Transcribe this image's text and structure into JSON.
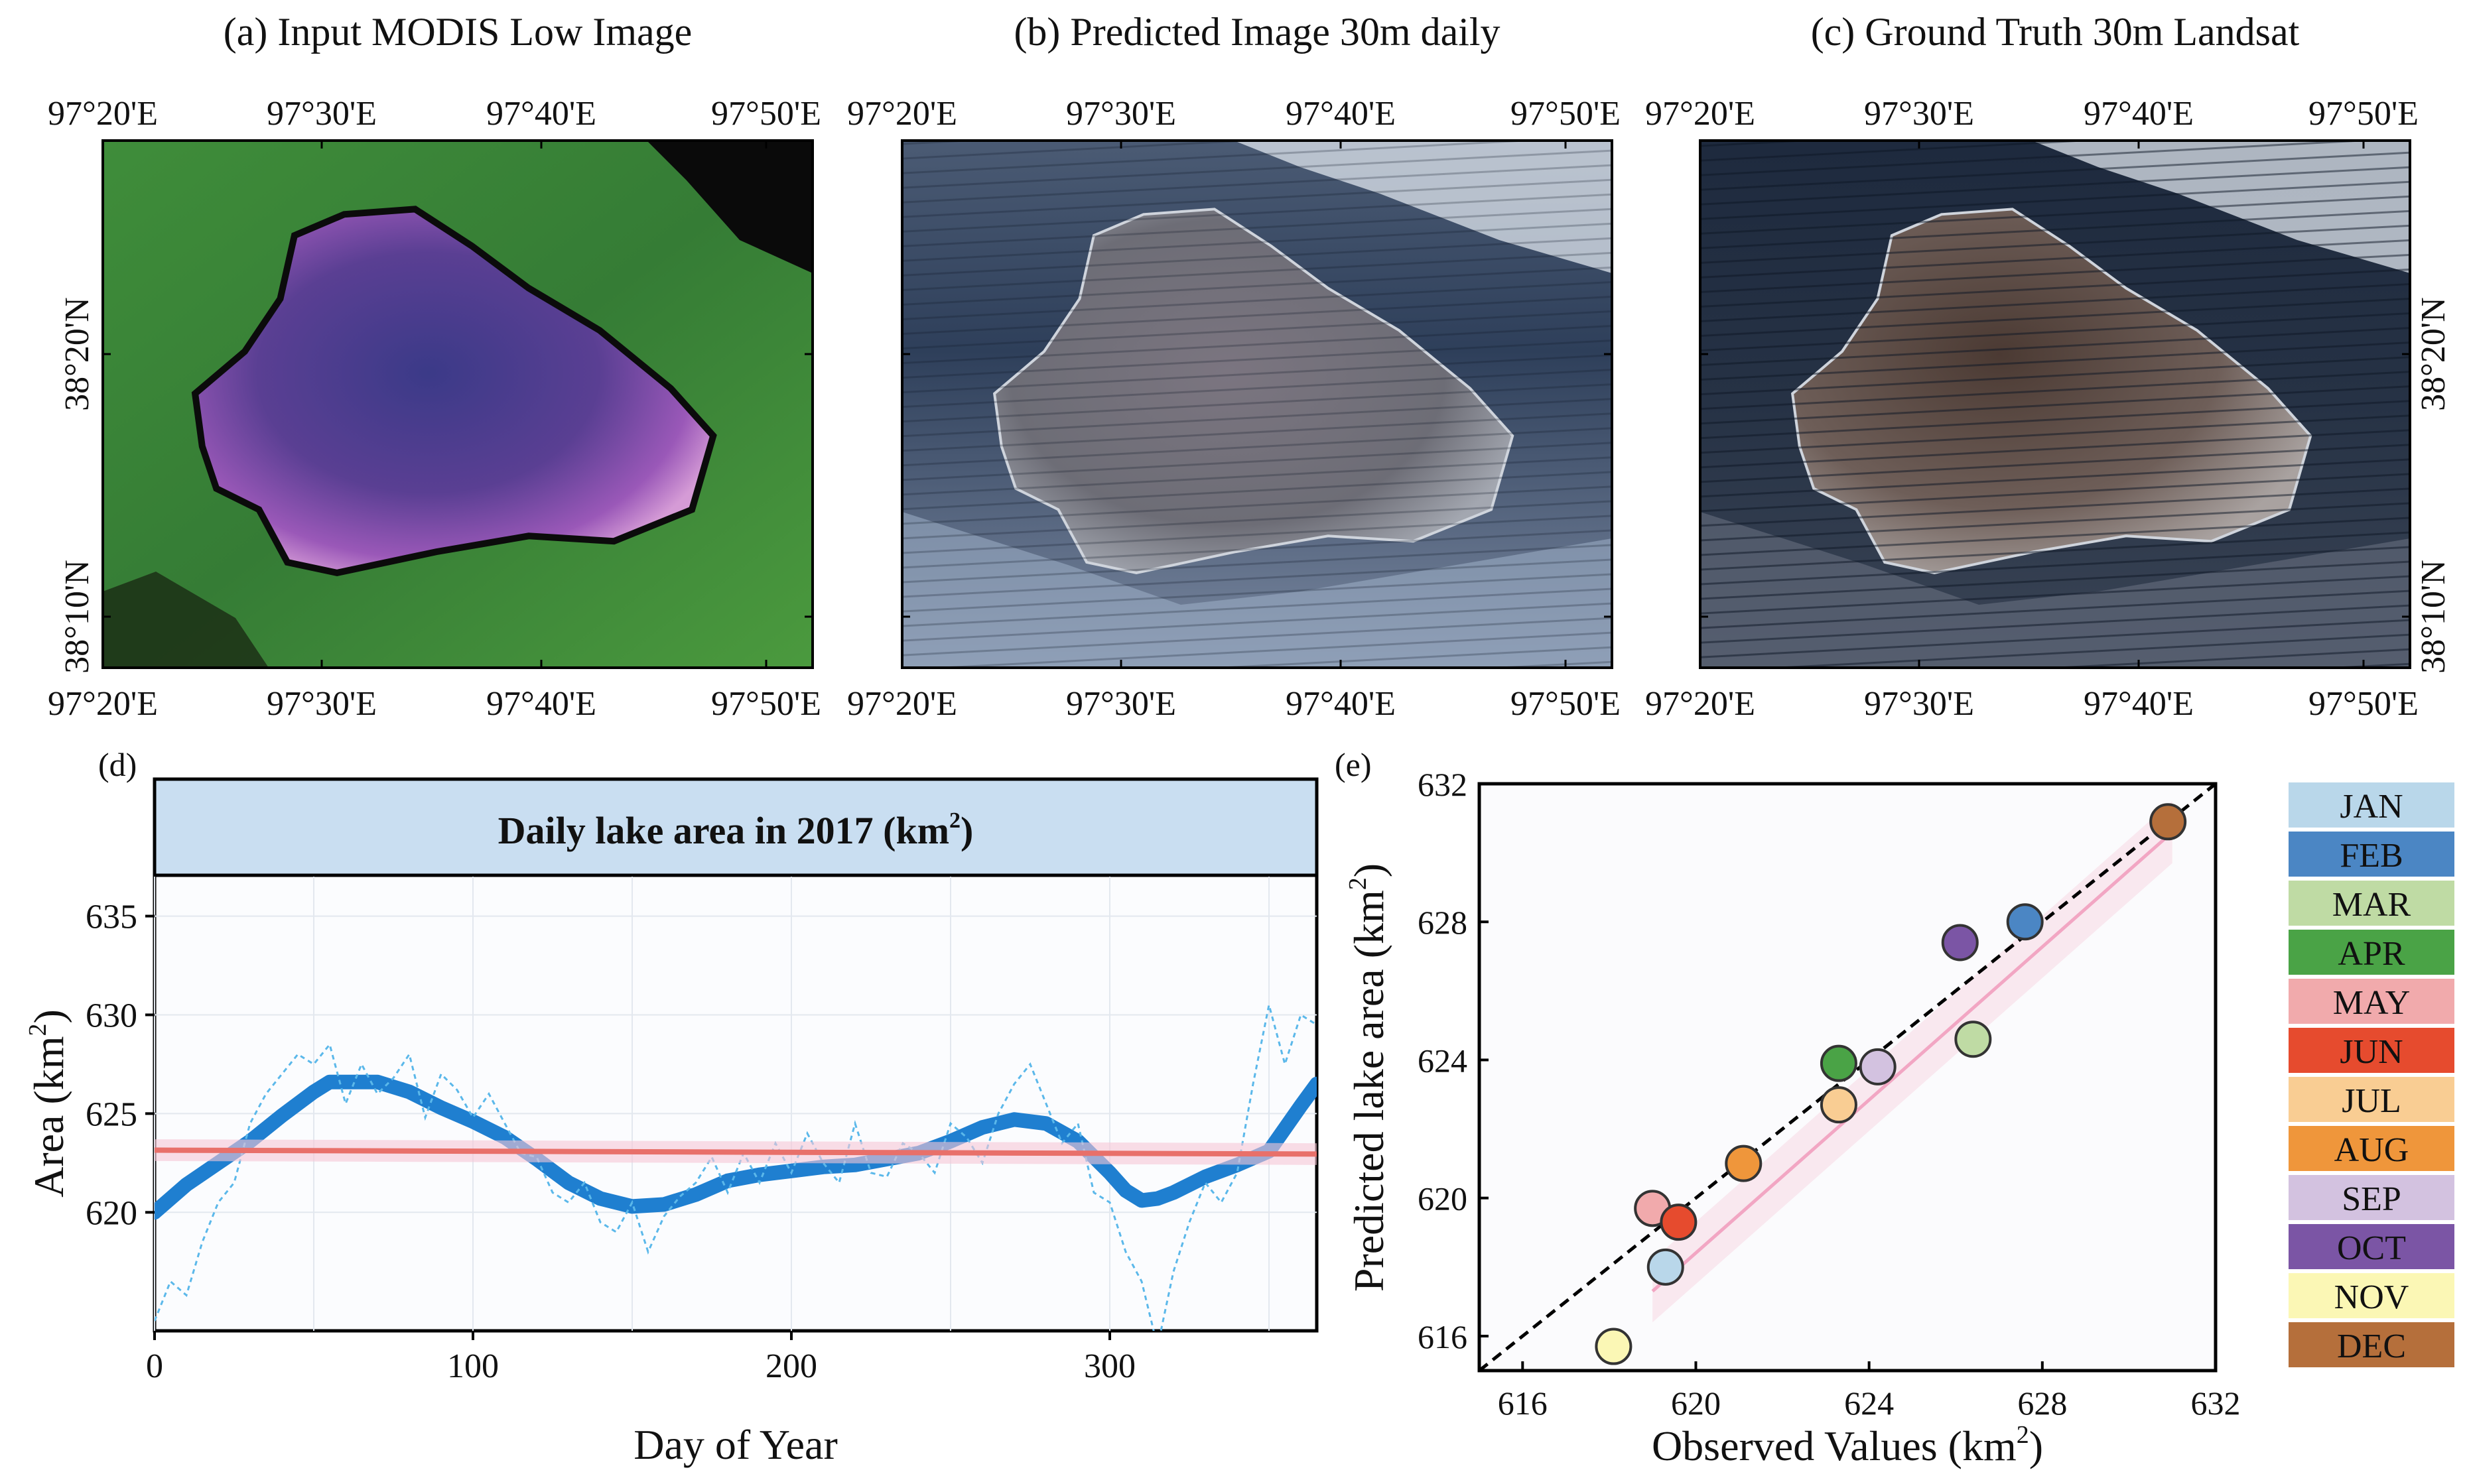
{
  "panels_top": [
    {
      "id": "a",
      "title": "(a) Input MODIS Low Image",
      "x_ticks": [
        "97°20'E",
        "97°30'E",
        "97°40'E",
        "97°50'E"
      ],
      "y_ticks": [
        "38°20'N",
        "38°10'N"
      ],
      "style": "modis"
    },
    {
      "id": "b",
      "title": "(b)  Predicted Image 30m daily",
      "x_ticks": [
        "97°20'E",
        "97°30'E",
        "97°40'E",
        "97°50'E"
      ],
      "y_ticks": [],
      "style": "predicted"
    },
    {
      "id": "c",
      "title": "(c) Ground Truth 30m Landsat",
      "x_ticks": [
        "97°20'E",
        "97°30'E",
        "97°40'E",
        "97°50'E"
      ],
      "y_ticks": [
        "38°20'N",
        "38°10'N"
      ],
      "style": "landsat"
    }
  ],
  "colors": {
    "series_blue": "#1f7fd0",
    "daily_light_blue": "#5bb8ea",
    "trend_red": "#e8706a",
    "trend_band": "#f6c6d6",
    "header_fill": "#c9def1",
    "modis_green": "#3e8a3a",
    "modis_purple": "#5a3f93"
  },
  "chart_data": [
    {
      "panel": "(d)",
      "type": "line",
      "title": "Daily lake area in 2017 (km",
      "title_sup": "2",
      "title_close": ")",
      "xlabel": "Day of Year",
      "ylabel": "Area (km",
      "ylabel_sup": "2",
      "ylabel_close": ")",
      "xlim": [
        0,
        365
      ],
      "ylim": [
        614,
        637
      ],
      "xticks": [
        0,
        100,
        200,
        300
      ],
      "yticks": [
        620,
        625,
        630,
        635
      ],
      "series": [
        {
          "name": "smoothed daily area",
          "kind": "thick-line",
          "x": [
            0,
            10,
            20,
            30,
            40,
            50,
            55,
            70,
            80,
            90,
            100,
            110,
            120,
            130,
            140,
            150,
            160,
            170,
            180,
            190,
            200,
            210,
            220,
            230,
            240,
            250,
            260,
            270,
            280,
            290,
            300,
            305,
            310,
            315,
            320,
            330,
            340,
            350,
            360,
            365
          ],
          "y": [
            620.0,
            621.4,
            622.5,
            623.6,
            624.9,
            626.1,
            626.6,
            626.6,
            626.1,
            625.3,
            624.6,
            623.8,
            622.7,
            621.5,
            620.7,
            620.3,
            620.4,
            620.9,
            621.6,
            621.9,
            622.1,
            622.3,
            622.4,
            622.7,
            623.0,
            623.6,
            624.3,
            624.7,
            624.5,
            623.6,
            622.0,
            621.1,
            620.6,
            620.7,
            621.0,
            621.8,
            622.4,
            623.1,
            625.4,
            626.5
          ]
        },
        {
          "name": "daily values",
          "kind": "dashed-light",
          "x": [
            0,
            5,
            10,
            15,
            20,
            25,
            30,
            35,
            40,
            45,
            50,
            55,
            60,
            65,
            70,
            75,
            80,
            85,
            90,
            95,
            100,
            105,
            110,
            115,
            120,
            125,
            130,
            135,
            140,
            145,
            150,
            155,
            160,
            165,
            170,
            175,
            180,
            185,
            190,
            195,
            200,
            205,
            210,
            215,
            220,
            225,
            230,
            235,
            240,
            245,
            250,
            255,
            260,
            265,
            270,
            275,
            280,
            285,
            290,
            295,
            300,
            305,
            310,
            315,
            320,
            325,
            330,
            335,
            340,
            345,
            350,
            355,
            360,
            365
          ],
          "y": [
            614.5,
            616.5,
            615.8,
            618.5,
            620.5,
            621.5,
            624.5,
            626.0,
            627.0,
            628.0,
            627.5,
            628.5,
            625.5,
            627.5,
            626.0,
            626.8,
            628.0,
            624.8,
            627.0,
            626.2,
            624.8,
            626.0,
            624.5,
            623.0,
            622.8,
            621.0,
            620.5,
            621.5,
            619.5,
            619.0,
            620.5,
            618.0,
            619.8,
            620.8,
            621.5,
            622.8,
            621.0,
            623.0,
            621.5,
            623.5,
            622.0,
            624.0,
            622.5,
            621.5,
            624.5,
            622.0,
            621.8,
            623.5,
            623.0,
            622.0,
            624.5,
            623.8,
            622.5,
            625.0,
            626.5,
            627.5,
            625.5,
            623.5,
            624.5,
            621.0,
            620.5,
            618.0,
            616.5,
            613.2,
            617.0,
            619.5,
            621.5,
            620.5,
            622.0,
            626.5,
            630.5,
            627.5,
            630.0,
            629.5
          ]
        },
        {
          "name": "linear trend",
          "kind": "trend",
          "x": [
            0,
            365
          ],
          "y": [
            623.15,
            622.95
          ]
        }
      ]
    },
    {
      "panel": "(e)",
      "type": "scatter",
      "xlabel": "Observed Values (km",
      "xlabel_sup": "2",
      "xlabel_close": ")",
      "ylabel": "Predicted lake area (km",
      "ylabel_sup": "2",
      "ylabel_close": ")",
      "xlim": [
        615,
        632
      ],
      "ylim": [
        615,
        632
      ],
      "xticks": [
        616,
        620,
        624,
        628,
        632
      ],
      "yticks": [
        616,
        620,
        624,
        628,
        632
      ],
      "reference_line": "1:1 dashed",
      "fit_line": {
        "x": [
          619,
          631
        ],
        "y": [
          617.3,
          630.6
        ]
      },
      "points": [
        {
          "month": "JAN",
          "x": 619.3,
          "y": 618.0
        },
        {
          "month": "FEB",
          "x": 627.6,
          "y": 628.0
        },
        {
          "month": "MAR",
          "x": 626.4,
          "y": 624.6
        },
        {
          "month": "APR",
          "x": 623.3,
          "y": 623.9
        },
        {
          "month": "MAY",
          "x": 619.0,
          "y": 619.7
        },
        {
          "month": "JUN",
          "x": 619.6,
          "y": 619.3
        },
        {
          "month": "JUL",
          "x": 623.3,
          "y": 622.7
        },
        {
          "month": "AUG",
          "x": 621.1,
          "y": 621.0
        },
        {
          "month": "SEP",
          "x": 624.2,
          "y": 623.8
        },
        {
          "month": "OCT",
          "x": 626.1,
          "y": 627.4
        },
        {
          "month": "NOV",
          "x": 618.1,
          "y": 615.7
        },
        {
          "month": "DEC",
          "x": 630.9,
          "y": 630.9
        }
      ]
    }
  ],
  "legend": [
    {
      "label": "JAN",
      "color": "#b9d7ea"
    },
    {
      "label": "FEB",
      "color": "#4b86c4"
    },
    {
      "label": "MAR",
      "color": "#bfdba4"
    },
    {
      "label": "APR",
      "color": "#4aa346"
    },
    {
      "label": "MAY",
      "color": "#f1aaac"
    },
    {
      "label": "JUN",
      "color": "#e64b2e"
    },
    {
      "label": "JUL",
      "color": "#f9cd93"
    },
    {
      "label": "AUG",
      "color": "#ef963b"
    },
    {
      "label": "SEP",
      "color": "#d3c2e0"
    },
    {
      "label": "OCT",
      "color": "#7b55a5"
    },
    {
      "label": "NOV",
      "color": "#fbf7b5"
    },
    {
      "label": "DEC",
      "color": "#b56f3b"
    }
  ]
}
